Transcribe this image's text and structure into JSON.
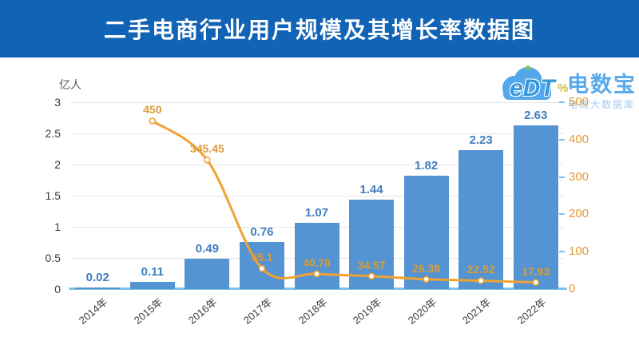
{
  "title": "二手电商行业用户规模及其增长率数据图",
  "logo": {
    "icon": "cloud-icon",
    "wordmark": "eDT",
    "percent": "%",
    "brand": "电数宝",
    "subtitle": "电商大数据库"
  },
  "colors": {
    "banner": "#1063B5",
    "bar": "#5494D2",
    "bar_label": "#3E7EC1",
    "line": "#F0A232",
    "line_label": "#DB9B35",
    "right_axis_label": "#E39A3B",
    "axis_line": "#7EC3E7",
    "gridline": "#E4E4E4",
    "axis_text": "#3D3D3D",
    "logo_blue": "#49A4E9"
  },
  "chart_data": {
    "type": "bar+line",
    "title": "二手电商行业用户规模及其增长率数据图",
    "categories": [
      "2014年",
      "2015年",
      "2016年",
      "2017年",
      "2018年",
      "2019年",
      "2020年",
      "2021年",
      "2022年"
    ],
    "series": [
      {
        "name": "用户规模",
        "type": "bar",
        "axis": "left",
        "values": [
          0.02,
          0.11,
          0.49,
          0.76,
          1.07,
          1.44,
          1.82,
          2.23,
          2.63
        ]
      },
      {
        "name": "增长率",
        "type": "line",
        "axis": "right",
        "values": [
          null,
          450,
          345.45,
          55.1,
          40.78,
          34.57,
          26.38,
          22.52,
          17.93
        ]
      }
    ],
    "ylabel_left": "亿人",
    "ylabel_right": "%",
    "ylim_left": [
      0,
      3
    ],
    "ylim_right": [
      0,
      500
    ],
    "yticks_left": [
      "0",
      "0.5",
      "1",
      "1.5",
      "2",
      "2.5",
      "3"
    ],
    "yticks_right": [
      "0",
      "100",
      "200",
      "300",
      "400",
      "500"
    ],
    "grid": true,
    "legend": false,
    "xlabel_rotation": -40
  }
}
